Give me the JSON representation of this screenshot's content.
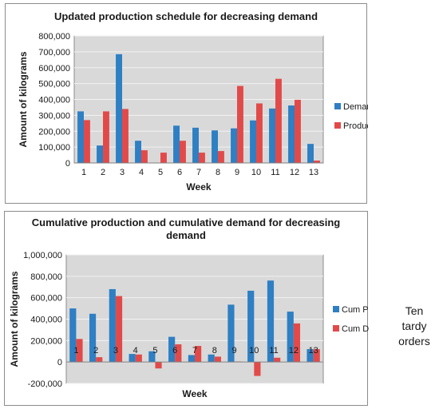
{
  "side_note": {
    "line1": "Ten tardy",
    "line2": "orders"
  },
  "chart_data": [
    {
      "type": "bar",
      "title": "Updated production schedule for decreasing demand",
      "xlabel": "Week",
      "ylabel": "Amount of kilograms",
      "categories": [
        "1",
        "2",
        "3",
        "4",
        "5",
        "6",
        "7",
        "8",
        "9",
        "10",
        "11",
        "12",
        "13"
      ],
      "ylim": [
        0,
        800000
      ],
      "yticks": [
        0,
        100000,
        200000,
        300000,
        400000,
        500000,
        600000,
        700000,
        800000
      ],
      "ytick_labels": [
        "0",
        "100,000",
        "200,000",
        "300,000",
        "400,000",
        "500,000",
        "600,000",
        "700,000",
        "800,000"
      ],
      "legend_position": "right",
      "grid": true,
      "series": [
        {
          "name": "Demand",
          "color": "#2e7fc3",
          "values": [
            325000,
            110000,
            685000,
            140000,
            0,
            235000,
            222000,
            205000,
            218000,
            268000,
            343000,
            362000,
            120000
          ]
        },
        {
          "name": "Production",
          "color": "#e24a4a",
          "values": [
            270000,
            325000,
            340000,
            80000,
            65000,
            140000,
            65000,
            75000,
            485000,
            375000,
            530000,
            398000,
            15000
          ]
        }
      ]
    },
    {
      "type": "bar",
      "title_line1": "Cumulative production and cumulative demand for decreasing",
      "title_line2": "demand",
      "xlabel": "Week",
      "ylabel": "Amount of kilograms",
      "categories": [
        "1",
        "2",
        "3",
        "4",
        "5",
        "6",
        "7",
        "8",
        "9",
        "10",
        "11",
        "12",
        "13"
      ],
      "ylim": [
        -200000,
        1000000
      ],
      "yticks": [
        -200000,
        0,
        200000,
        400000,
        600000,
        800000,
        1000000
      ],
      "ytick_labels": [
        "-200,000",
        "0",
        "200,000",
        "400,000",
        "600,000",
        "800,000",
        "1,000,000"
      ],
      "legend_position": "right",
      "grid": true,
      "series": [
        {
          "name": "Cum Prod",
          "color": "#2e7fc3",
          "values": [
            500000,
            450000,
            680000,
            75000,
            100000,
            235000,
            65000,
            70000,
            535000,
            665000,
            760000,
            470000,
            120000
          ]
        },
        {
          "name": "Cum Dem",
          "color": "#e24a4a",
          "values": [
            215000,
            45000,
            615000,
            70000,
            -60000,
            165000,
            150000,
            50000,
            5000,
            -130000,
            40000,
            360000,
            120000
          ]
        }
      ]
    }
  ]
}
